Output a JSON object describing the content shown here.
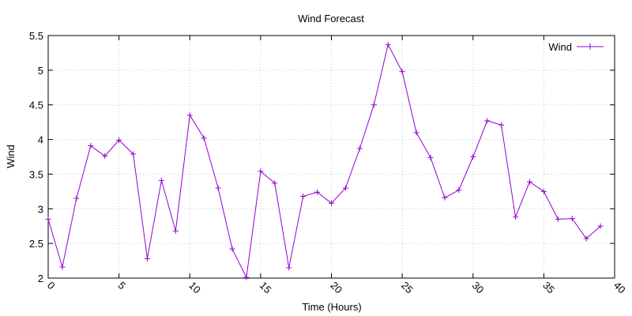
{
  "chart_data": {
    "type": "line",
    "title": "Wind Forecast",
    "xlabel": "Time (Hours)",
    "ylabel": "Wind",
    "xlim": [
      0,
      40
    ],
    "ylim": [
      2,
      5.5
    ],
    "xticks": [
      0,
      5,
      10,
      15,
      20,
      25,
      30,
      35,
      40
    ],
    "yticks": [
      2,
      2.5,
      3,
      3.5,
      4,
      4.5,
      5,
      5.5
    ],
    "xtick_labels": [
      "0",
      "5",
      "10",
      "15",
      "20",
      "25",
      "30",
      "35",
      "40"
    ],
    "ytick_labels": [
      "2",
      "2.5",
      "3",
      "3.5",
      "4",
      "4.5",
      "5",
      "5.5"
    ],
    "grid": true,
    "legend_position": "top-right",
    "series": [
      {
        "name": "Wind",
        "color": "#9400d3",
        "marker": "plus",
        "x": [
          0,
          1,
          2,
          3,
          4,
          5,
          6,
          7,
          8,
          9,
          10,
          11,
          12,
          13,
          14,
          15,
          16,
          17,
          18,
          19,
          20,
          21,
          22,
          23,
          24,
          25,
          26,
          27,
          28,
          29,
          30,
          31,
          32,
          33,
          34,
          35,
          36,
          37,
          38,
          39
        ],
        "y": [
          2.85,
          2.16,
          3.15,
          3.91,
          3.76,
          3.99,
          3.79,
          2.28,
          3.41,
          2.68,
          4.35,
          4.02,
          3.3,
          2.42,
          2.01,
          3.54,
          3.37,
          2.15,
          3.18,
          3.24,
          3.08,
          3.3,
          3.87,
          4.5,
          5.37,
          4.98,
          4.1,
          3.74,
          3.16,
          3.27,
          3.75,
          4.27,
          4.21,
          2.88,
          3.39,
          3.25,
          2.85,
          2.86,
          2.57,
          2.75
        ]
      }
    ]
  }
}
